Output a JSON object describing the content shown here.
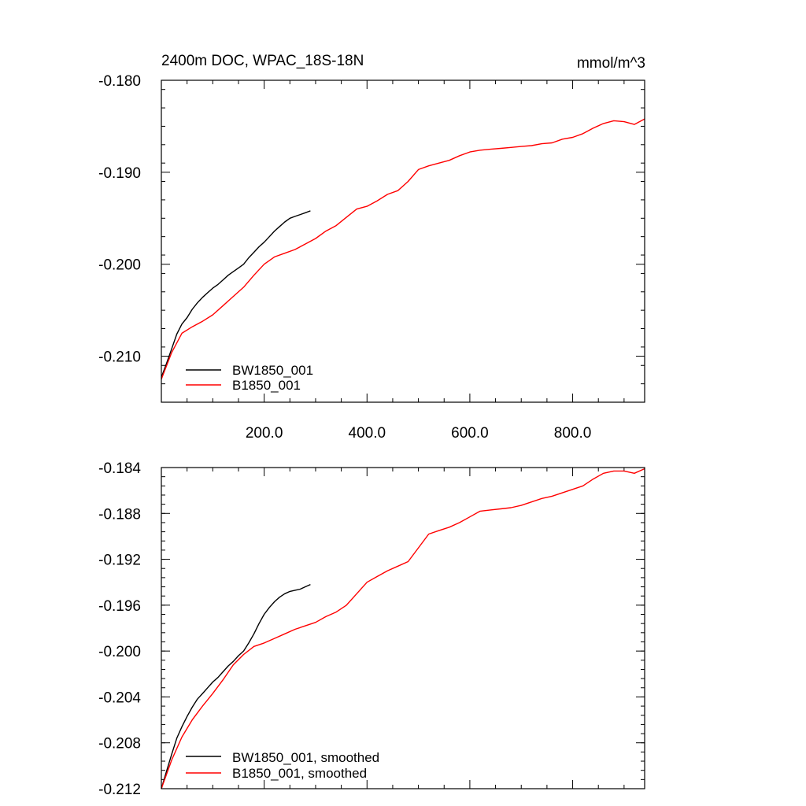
{
  "units": "mmol/m^3",
  "chart_data": [
    {
      "type": "line",
      "title": "2400m DOC, WPAC_18S-18N",
      "xlabel": "",
      "ylabel": "",
      "xlim": [
        0,
        940
      ],
      "ylim": [
        -0.215,
        -0.18
      ],
      "xticks": [
        200,
        400,
        600,
        800
      ],
      "xtick_labels": [
        "200.0",
        "400.0",
        "600.0",
        "800.0"
      ],
      "yticks": [
        -0.21,
        -0.2,
        -0.19,
        -0.18
      ],
      "ytick_labels": [
        "-0.210",
        "-0.200",
        "-0.190",
        "-0.180"
      ],
      "legend_position": "bottom-left",
      "series": [
        {
          "name": "BW1850_001",
          "color": "#000000",
          "x": [
            0,
            10,
            20,
            30,
            40,
            50,
            60,
            70,
            80,
            90,
            100,
            110,
            120,
            130,
            140,
            150,
            160,
            170,
            180,
            190,
            200,
            210,
            220,
            230,
            240,
            250,
            260,
            270,
            280,
            290
          ],
          "y": [
            -0.2123,
            -0.2108,
            -0.2092,
            -0.2076,
            -0.2065,
            -0.2058,
            -0.2049,
            -0.2042,
            -0.2036,
            -0.2031,
            -0.2026,
            -0.2022,
            -0.2017,
            -0.2012,
            -0.2008,
            -0.2004,
            -0.2,
            -0.1993,
            -0.1987,
            -0.1981,
            -0.1976,
            -0.197,
            -0.1964,
            -0.1959,
            -0.1954,
            -0.195,
            -0.1948,
            -0.1946,
            -0.1944,
            -0.1942
          ]
        },
        {
          "name": "B1850_001",
          "color": "#ff0000",
          "x": [
            0,
            20,
            40,
            60,
            80,
            100,
            120,
            140,
            160,
            180,
            200,
            220,
            240,
            260,
            280,
            300,
            320,
            340,
            360,
            380,
            400,
            420,
            440,
            460,
            480,
            500,
            520,
            540,
            560,
            580,
            600,
            620,
            640,
            660,
            680,
            700,
            720,
            740,
            760,
            780,
            800,
            820,
            840,
            860,
            880,
            900,
            920,
            940
          ],
          "y": [
            -0.2125,
            -0.2096,
            -0.2075,
            -0.2068,
            -0.2062,
            -0.2055,
            -0.2045,
            -0.2035,
            -0.2025,
            -0.2012,
            -0.2,
            -0.1992,
            -0.1988,
            -0.1984,
            -0.1978,
            -0.1972,
            -0.1964,
            -0.1958,
            -0.1949,
            -0.194,
            -0.1937,
            -0.1931,
            -0.1924,
            -0.192,
            -0.191,
            -0.1897,
            -0.1893,
            -0.189,
            -0.1887,
            -0.1882,
            -0.1878,
            -0.1876,
            -0.1875,
            -0.1874,
            -0.1873,
            -0.1872,
            -0.1871,
            -0.1869,
            -0.1868,
            -0.1864,
            -0.1862,
            -0.1858,
            -0.1852,
            -0.1847,
            -0.1844,
            -0.1845,
            -0.1848,
            -0.1842
          ]
        }
      ]
    },
    {
      "type": "line",
      "title": "",
      "xlabel": "",
      "ylabel": "",
      "xlim": [
        0,
        940
      ],
      "ylim": [
        -0.212,
        -0.184
      ],
      "xticks": [
        200,
        400,
        600,
        800
      ],
      "yticks": [
        -0.212,
        -0.208,
        -0.204,
        -0.2,
        -0.196,
        -0.192,
        -0.188,
        -0.184
      ],
      "ytick_labels": [
        "-0.212",
        "-0.208",
        "-0.204",
        "-0.200",
        "-0.196",
        "-0.192",
        "-0.188",
        "-0.184"
      ],
      "legend_position": "bottom-left",
      "series": [
        {
          "name": "BW1850_001, smoothed",
          "color": "#000000",
          "x": [
            0,
            10,
            20,
            30,
            40,
            50,
            60,
            70,
            80,
            90,
            100,
            110,
            120,
            130,
            140,
            150,
            160,
            170,
            180,
            190,
            200,
            210,
            220,
            230,
            240,
            250,
            260,
            270,
            280,
            290
          ],
          "y": [
            -0.212,
            -0.2105,
            -0.209,
            -0.2076,
            -0.2066,
            -0.2057,
            -0.2049,
            -0.2042,
            -0.2037,
            -0.2032,
            -0.2027,
            -0.2023,
            -0.2018,
            -0.2013,
            -0.2009,
            -0.2004,
            -0.2,
            -0.1993,
            -0.1985,
            -0.1976,
            -0.1968,
            -0.1962,
            -0.1957,
            -0.1953,
            -0.195,
            -0.1948,
            -0.1947,
            -0.1946,
            -0.1944,
            -0.1942
          ]
        },
        {
          "name": "B1850_001, smoothed",
          "color": "#ff0000",
          "x": [
            0,
            20,
            40,
            60,
            80,
            100,
            120,
            140,
            160,
            180,
            200,
            220,
            240,
            260,
            280,
            300,
            320,
            340,
            360,
            380,
            400,
            420,
            440,
            460,
            480,
            500,
            520,
            540,
            560,
            580,
            600,
            620,
            640,
            660,
            680,
            700,
            720,
            740,
            760,
            780,
            800,
            820,
            840,
            860,
            880,
            900,
            920,
            940
          ],
          "y": [
            -0.212,
            -0.2095,
            -0.2075,
            -0.206,
            -0.2048,
            -0.2037,
            -0.2025,
            -0.2012,
            -0.2003,
            -0.1996,
            -0.1993,
            -0.1989,
            -0.1985,
            -0.1981,
            -0.1978,
            -0.1975,
            -0.197,
            -0.1966,
            -0.196,
            -0.195,
            -0.194,
            -0.1935,
            -0.193,
            -0.1926,
            -0.1922,
            -0.191,
            -0.1898,
            -0.1895,
            -0.1892,
            -0.1888,
            -0.1883,
            -0.1878,
            -0.1877,
            -0.1876,
            -0.1875,
            -0.1873,
            -0.187,
            -0.1867,
            -0.1865,
            -0.1862,
            -0.1859,
            -0.1856,
            -0.185,
            -0.1845,
            -0.1843,
            -0.1843,
            -0.1845,
            -0.1841
          ]
        }
      ]
    }
  ]
}
